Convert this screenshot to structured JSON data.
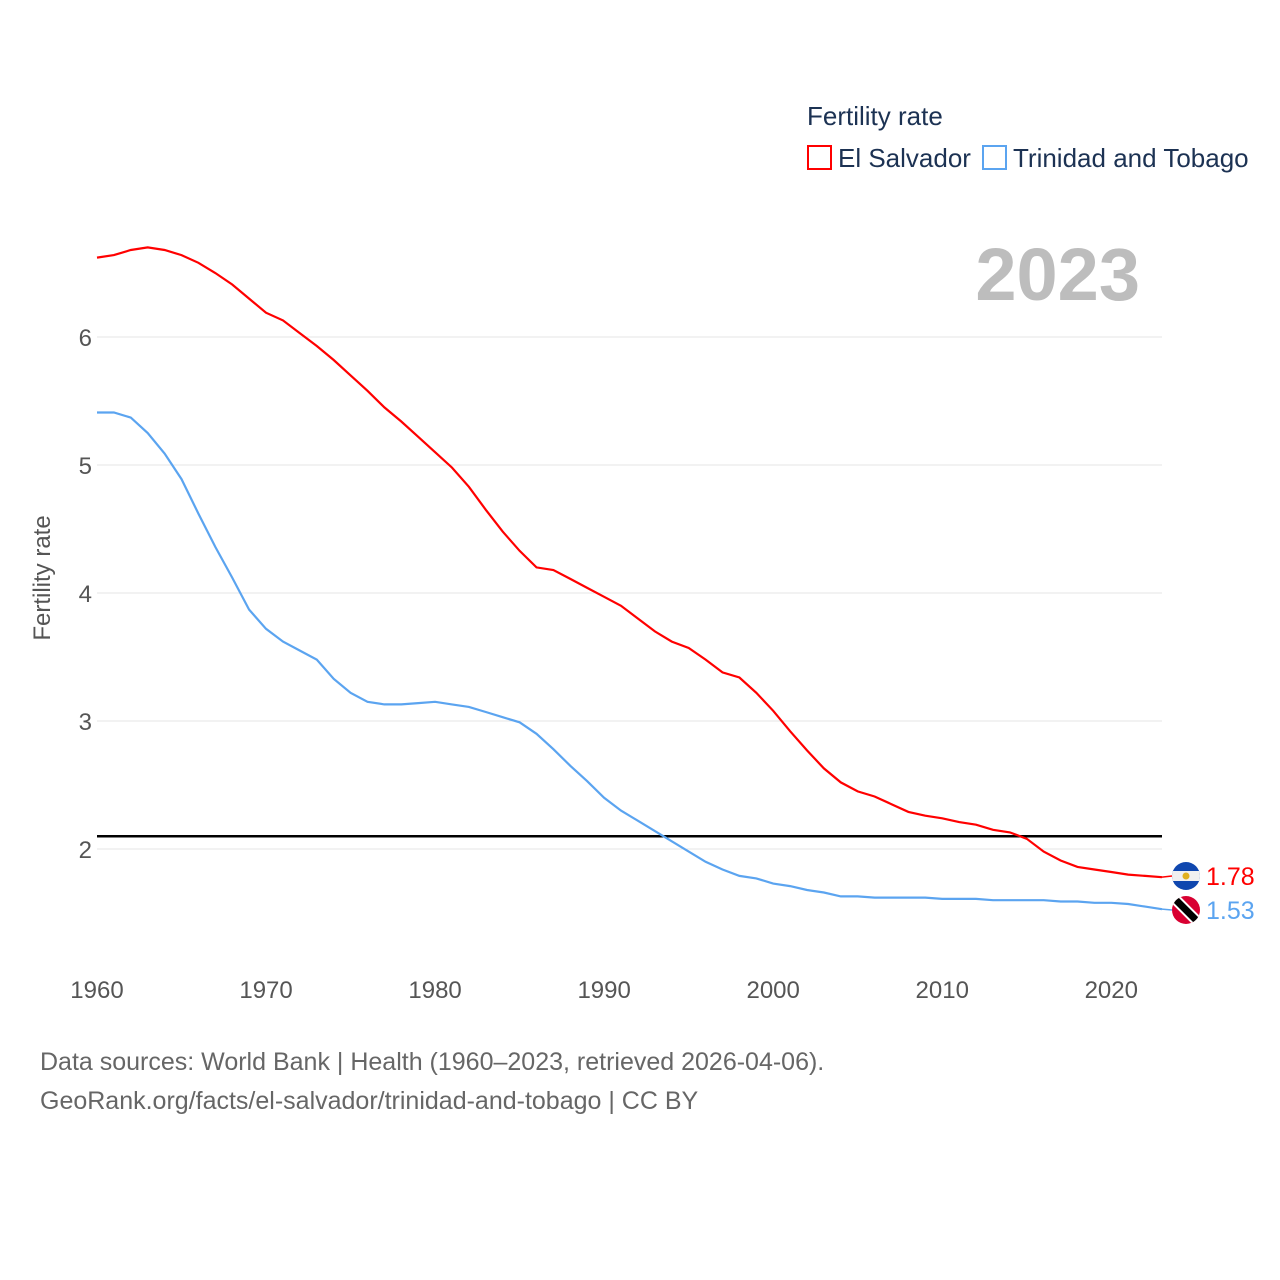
{
  "chart_data": {
    "type": "line",
    "title": "Fertility rate",
    "ylabel": "Fertility rate",
    "xlabel": "",
    "year_display": "2023",
    "xlim": [
      1960,
      2023
    ],
    "ylim": [
      1.3,
      6.9
    ],
    "x_ticks": [
      1960,
      1970,
      1980,
      1990,
      2000,
      2010,
      2020
    ],
    "y_ticks": [
      2,
      3,
      4,
      5,
      6
    ],
    "grid": true,
    "legend_position": "top-right",
    "reference_line": {
      "value": 2.1,
      "color": "#000000"
    },
    "x": [
      1960,
      1961,
      1962,
      1963,
      1964,
      1965,
      1966,
      1967,
      1968,
      1969,
      1970,
      1971,
      1972,
      1973,
      1974,
      1975,
      1976,
      1977,
      1978,
      1979,
      1980,
      1981,
      1982,
      1983,
      1984,
      1985,
      1986,
      1987,
      1988,
      1989,
      1990,
      1991,
      1992,
      1993,
      1994,
      1995,
      1996,
      1997,
      1998,
      1999,
      2000,
      2001,
      2002,
      2003,
      2004,
      2005,
      2006,
      2007,
      2008,
      2009,
      2010,
      2011,
      2012,
      2013,
      2014,
      2015,
      2016,
      2017,
      2018,
      2019,
      2020,
      2021,
      2022,
      2023
    ],
    "series": [
      {
        "name": "El Salvador",
        "color": "#ff0000",
        "end_label": "1.78",
        "flag": "el-salvador",
        "values": [
          6.62,
          6.64,
          6.68,
          6.7,
          6.68,
          6.64,
          6.58,
          6.5,
          6.41,
          6.3,
          6.19,
          6.13,
          6.03,
          5.93,
          5.82,
          5.7,
          5.58,
          5.45,
          5.34,
          5.22,
          5.1,
          4.98,
          4.83,
          4.65,
          4.48,
          4.33,
          4.2,
          4.18,
          4.11,
          4.04,
          3.97,
          3.9,
          3.8,
          3.7,
          3.62,
          3.57,
          3.48,
          3.38,
          3.34,
          3.22,
          3.08,
          2.92,
          2.77,
          2.63,
          2.52,
          2.45,
          2.41,
          2.35,
          2.29,
          2.26,
          2.24,
          2.21,
          2.19,
          2.15,
          2.13,
          2.08,
          1.98,
          1.91,
          1.86,
          1.84,
          1.82,
          1.8,
          1.79,
          1.78
        ]
      },
      {
        "name": "Trinidad and Tobago",
        "color": "#5ba4f0",
        "end_label": "1.53",
        "flag": "trinidad-and-tobago",
        "values": [
          5.41,
          5.41,
          5.37,
          5.25,
          5.09,
          4.89,
          4.62,
          4.36,
          4.12,
          3.87,
          3.72,
          3.62,
          3.55,
          3.48,
          3.33,
          3.22,
          3.15,
          3.13,
          3.13,
          3.14,
          3.15,
          3.13,
          3.11,
          3.07,
          3.03,
          2.99,
          2.9,
          2.78,
          2.65,
          2.53,
          2.4,
          2.3,
          2.22,
          2.14,
          2.06,
          1.98,
          1.9,
          1.84,
          1.79,
          1.77,
          1.73,
          1.71,
          1.68,
          1.66,
          1.63,
          1.63,
          1.62,
          1.62,
          1.62,
          1.62,
          1.61,
          1.61,
          1.61,
          1.6,
          1.6,
          1.6,
          1.6,
          1.59,
          1.59,
          1.58,
          1.58,
          1.57,
          1.55,
          1.53
        ]
      }
    ]
  },
  "footer": {
    "line1": "Data sources: World Bank | Health (1960–2023, retrieved 2026-04-06).",
    "line2": "GeoRank.org/facts/el-salvador/trinidad-and-tobago | CC BY"
  }
}
